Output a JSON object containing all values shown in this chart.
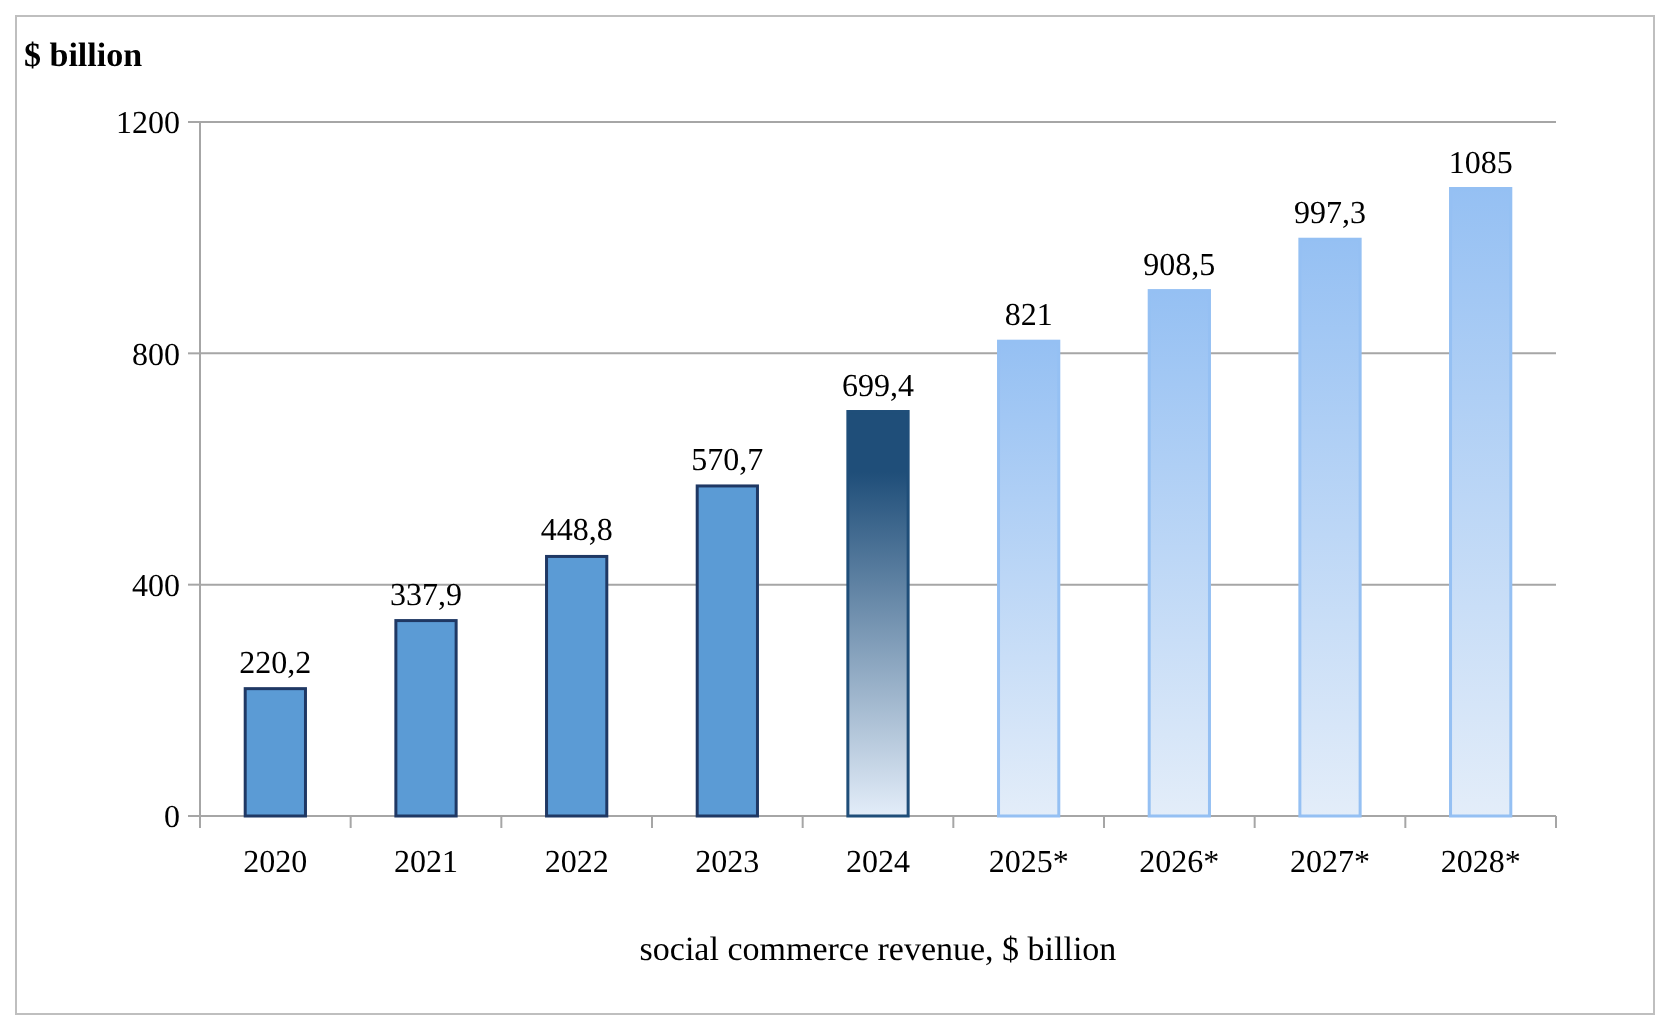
{
  "chart_data": {
    "type": "bar",
    "ylabel": "$ billion",
    "xlabel": "social commerce revenue, $ billion",
    "categories": [
      "2020",
      "2021",
      "2022",
      "2023",
      "2024",
      "2025*",
      "2026*",
      "2027*",
      "2028*"
    ],
    "values": [
      220.2,
      337.9,
      448.8,
      570.7,
      699.4,
      821,
      908.5,
      997.3,
      1085
    ],
    "value_labels": [
      "220,2",
      "337,9",
      "448,8",
      "570,7",
      "699,4",
      "821",
      "908,5",
      "997,3",
      "1085"
    ],
    "colors": [
      "#5b9bd5",
      "#5b9bd5",
      "#5b9bd5",
      "#5b9bd5",
      "#1f4e79",
      "#95c0f3",
      "#95c0f3",
      "#95c0f3",
      "#95c0f3"
    ],
    "ylim": [
      0,
      1200
    ],
    "yticks": [
      0,
      400,
      800,
      1200
    ],
    "grid": "y"
  }
}
